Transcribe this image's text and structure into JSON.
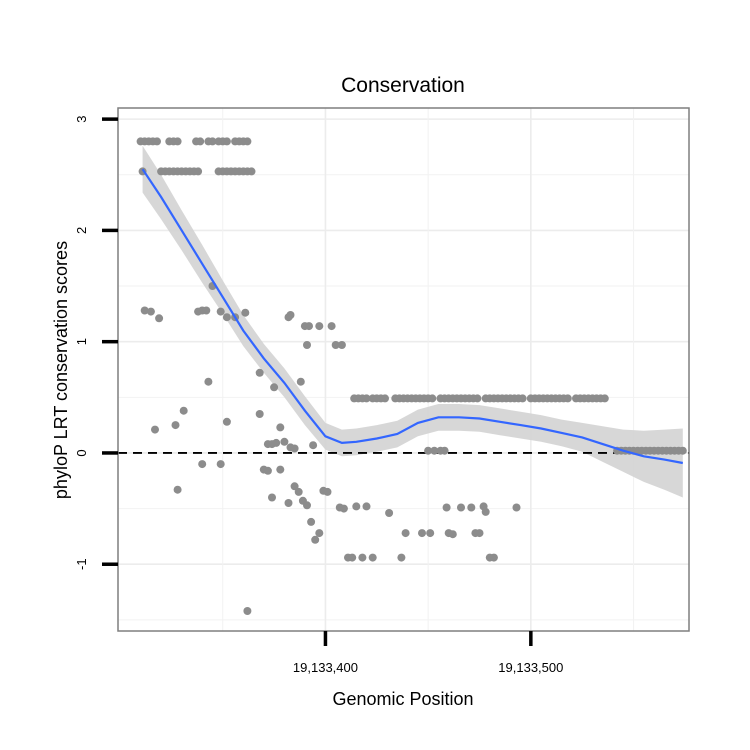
{
  "chart_data": {
    "type": "scatter",
    "title": "Conservation",
    "xlabel": "Genomic Position",
    "ylabel": "phyloP LRT conservation scores",
    "xlim": [
      19133299,
      19133577
    ],
    "ylim": [
      -1.6,
      3.1
    ],
    "x_ticks": [
      {
        "value": 19133400,
        "label": "19,133,400"
      },
      {
        "value": 19133500,
        "label": "19,133,500"
      }
    ],
    "y_ticks": [
      {
        "value": -1,
        "label": "-1"
      },
      {
        "value": 0,
        "label": "0"
      },
      {
        "value": 1,
        "label": "1"
      },
      {
        "value": 2,
        "label": "2"
      },
      {
        "value": 3,
        "label": "3"
      }
    ],
    "grid": true,
    "reference_line": {
      "y": 0,
      "style": "dashed"
    },
    "point_color": "#8c8c8c",
    "smooth_color": "#3366ff",
    "band_color": "#d3d3d3",
    "series": [
      {
        "type": "scatter",
        "points": [
          [
            19133310,
            2.8
          ],
          [
            19133312,
            2.8
          ],
          [
            19133314,
            2.8
          ],
          [
            19133316,
            2.8
          ],
          [
            19133318,
            2.8
          ],
          [
            19133324,
            2.8
          ],
          [
            19133326,
            2.8
          ],
          [
            19133328,
            2.8
          ],
          [
            19133337,
            2.8
          ],
          [
            19133339,
            2.8
          ],
          [
            19133343,
            2.8
          ],
          [
            19133345,
            2.8
          ],
          [
            19133348,
            2.8
          ],
          [
            19133350,
            2.8
          ],
          [
            19133352,
            2.8
          ],
          [
            19133356,
            2.8
          ],
          [
            19133358,
            2.8
          ],
          [
            19133360,
            2.8
          ],
          [
            19133362,
            2.8
          ],
          [
            19133320,
            2.53
          ],
          [
            19133322,
            2.53
          ],
          [
            19133324,
            2.53
          ],
          [
            19133326,
            2.53
          ],
          [
            19133328,
            2.53
          ],
          [
            19133330,
            2.53
          ],
          [
            19133332,
            2.53
          ],
          [
            19133334,
            2.53
          ],
          [
            19133336,
            2.53
          ],
          [
            19133338,
            2.53
          ],
          [
            19133348,
            2.53
          ],
          [
            19133350,
            2.53
          ],
          [
            19133352,
            2.53
          ],
          [
            19133354,
            2.53
          ],
          [
            19133356,
            2.53
          ],
          [
            19133358,
            2.53
          ],
          [
            19133360,
            2.53
          ],
          [
            19133362,
            2.53
          ],
          [
            19133364,
            2.53
          ],
          [
            19133311,
            2.53
          ],
          [
            19133312,
            1.28
          ],
          [
            19133315,
            1.27
          ],
          [
            19133319,
            1.21
          ],
          [
            19133338,
            1.27
          ],
          [
            19133340,
            1.28
          ],
          [
            19133342,
            1.28
          ],
          [
            19133345,
            1.5
          ],
          [
            19133349,
            1.27
          ],
          [
            19133352,
            1.22
          ],
          [
            19133356,
            1.22
          ],
          [
            19133361,
            1.26
          ],
          [
            19133382,
            1.22
          ],
          [
            19133383,
            1.24
          ],
          [
            19133390,
            1.14
          ],
          [
            19133392,
            1.14
          ],
          [
            19133397,
            1.14
          ],
          [
            19133403,
            1.14
          ],
          [
            19133405,
            0.97
          ],
          [
            19133408,
            0.97
          ],
          [
            19133368,
            0.72
          ],
          [
            19133375,
            0.59
          ],
          [
            19133388,
            0.64
          ],
          [
            19133391,
            0.97
          ],
          [
            19133343,
            0.64
          ],
          [
            19133327,
            0.25
          ],
          [
            19133331,
            0.38
          ],
          [
            19133317,
            0.21
          ],
          [
            19133352,
            0.28
          ],
          [
            19133368,
            0.35
          ],
          [
            19133372,
            0.08
          ],
          [
            19133374,
            0.08
          ],
          [
            19133376,
            0.09
          ],
          [
            19133378,
            0.23
          ],
          [
            19133380,
            0.1
          ],
          [
            19133383,
            0.05
          ],
          [
            19133385,
            0.04
          ],
          [
            19133328,
            -0.33
          ],
          [
            19133340,
            -0.1
          ],
          [
            19133349,
            -0.1
          ],
          [
            19133370,
            -0.15
          ],
          [
            19133372,
            -0.16
          ],
          [
            19133374,
            -0.4
          ],
          [
            19133378,
            -0.15
          ],
          [
            19133382,
            -0.45
          ],
          [
            19133385,
            -0.3
          ],
          [
            19133387,
            -0.35
          ],
          [
            19133389,
            -0.43
          ],
          [
            19133391,
            -0.47
          ],
          [
            19133393,
            -0.62
          ],
          [
            19133395,
            -0.78
          ],
          [
            19133397,
            -0.72
          ],
          [
            19133399,
            -0.34
          ],
          [
            19133401,
            -0.35
          ],
          [
            19133407,
            -0.49
          ],
          [
            19133409,
            -0.5
          ],
          [
            19133411,
            -0.94
          ],
          [
            19133413,
            -0.94
          ],
          [
            19133415,
            -0.48
          ],
          [
            19133418,
            -0.94
          ],
          [
            19133420,
            -0.48
          ],
          [
            19133423,
            -0.94
          ],
          [
            19133431,
            -0.54
          ],
          [
            19133437,
            -0.94
          ],
          [
            19133439,
            -0.72
          ],
          [
            19133447,
            -0.72
          ],
          [
            19133451,
            -0.72
          ],
          [
            19133459,
            -0.49
          ],
          [
            19133460,
            -0.72
          ],
          [
            19133462,
            -0.73
          ],
          [
            19133466,
            -0.49
          ],
          [
            19133471,
            -0.49
          ],
          [
            19133473,
            -0.72
          ],
          [
            19133475,
            -0.72
          ],
          [
            19133477,
            -0.48
          ],
          [
            19133478,
            -0.53
          ],
          [
            19133480,
            -0.94
          ],
          [
            19133482,
            -0.94
          ],
          [
            19133493,
            -0.49
          ],
          [
            19133362,
            -1.42
          ],
          [
            19133394,
            0.07
          ],
          [
            19133414,
            0.49
          ],
          [
            19133416,
            0.49
          ],
          [
            19133418,
            0.49
          ],
          [
            19133420,
            0.49
          ],
          [
            19133423,
            0.49
          ],
          [
            19133425,
            0.49
          ],
          [
            19133427,
            0.49
          ],
          [
            19133429,
            0.49
          ],
          [
            19133434,
            0.49
          ],
          [
            19133436,
            0.49
          ],
          [
            19133438,
            0.49
          ],
          [
            19133440,
            0.49
          ],
          [
            19133442,
            0.49
          ],
          [
            19133444,
            0.49
          ],
          [
            19133446,
            0.49
          ],
          [
            19133448,
            0.49
          ],
          [
            19133450,
            0.49
          ],
          [
            19133452,
            0.49
          ],
          [
            19133456,
            0.49
          ],
          [
            19133458,
            0.49
          ],
          [
            19133460,
            0.49
          ],
          [
            19133462,
            0.49
          ],
          [
            19133464,
            0.49
          ],
          [
            19133466,
            0.49
          ],
          [
            19133468,
            0.49
          ],
          [
            19133470,
            0.49
          ],
          [
            19133472,
            0.49
          ],
          [
            19133474,
            0.49
          ],
          [
            19133478,
            0.49
          ],
          [
            19133480,
            0.49
          ],
          [
            19133482,
            0.49
          ],
          [
            19133484,
            0.49
          ],
          [
            19133486,
            0.49
          ],
          [
            19133488,
            0.49
          ],
          [
            19133490,
            0.49
          ],
          [
            19133492,
            0.49
          ],
          [
            19133494,
            0.49
          ],
          [
            19133496,
            0.49
          ],
          [
            19133500,
            0.49
          ],
          [
            19133502,
            0.49
          ],
          [
            19133504,
            0.49
          ],
          [
            19133506,
            0.49
          ],
          [
            19133508,
            0.49
          ],
          [
            19133510,
            0.49
          ],
          [
            19133512,
            0.49
          ],
          [
            19133514,
            0.49
          ],
          [
            19133516,
            0.49
          ],
          [
            19133518,
            0.49
          ],
          [
            19133522,
            0.49
          ],
          [
            19133524,
            0.49
          ],
          [
            19133526,
            0.49
          ],
          [
            19133528,
            0.49
          ],
          [
            19133530,
            0.49
          ],
          [
            19133532,
            0.49
          ],
          [
            19133534,
            0.49
          ],
          [
            19133536,
            0.49
          ],
          [
            19133450,
            0.02
          ],
          [
            19133453,
            0.02
          ],
          [
            19133456,
            0.02
          ],
          [
            19133458,
            0.02
          ],
          [
            19133542,
            0.02
          ],
          [
            19133544,
            0.02
          ],
          [
            19133546,
            0.02
          ],
          [
            19133548,
            0.02
          ],
          [
            19133550,
            0.02
          ],
          [
            19133552,
            0.02
          ],
          [
            19133554,
            0.02
          ],
          [
            19133556,
            0.02
          ],
          [
            19133558,
            0.02
          ],
          [
            19133560,
            0.02
          ],
          [
            19133562,
            0.02
          ],
          [
            19133564,
            0.02
          ],
          [
            19133566,
            0.02
          ],
          [
            19133568,
            0.02
          ],
          [
            19133570,
            0.02
          ],
          [
            19133572,
            0.02
          ],
          [
            19133574,
            0.02
          ]
        ]
      },
      {
        "type": "smooth",
        "points": [
          [
            19133311,
            2.55
          ],
          [
            19133320,
            2.3
          ],
          [
            19133330,
            2.0
          ],
          [
            19133340,
            1.7
          ],
          [
            19133350,
            1.4
          ],
          [
            19133360,
            1.1
          ],
          [
            19133370,
            0.85
          ],
          [
            19133380,
            0.63
          ],
          [
            19133390,
            0.38
          ],
          [
            19133400,
            0.15
          ],
          [
            19133408,
            0.09
          ],
          [
            19133415,
            0.1
          ],
          [
            19133425,
            0.13
          ],
          [
            19133435,
            0.17
          ],
          [
            19133445,
            0.27
          ],
          [
            19133455,
            0.32
          ],
          [
            19133465,
            0.32
          ],
          [
            19133475,
            0.31
          ],
          [
            19133485,
            0.28
          ],
          [
            19133495,
            0.25
          ],
          [
            19133505,
            0.22
          ],
          [
            19133515,
            0.18
          ],
          [
            19133525,
            0.14
          ],
          [
            19133535,
            0.08
          ],
          [
            19133545,
            0.02
          ],
          [
            19133555,
            -0.03
          ],
          [
            19133565,
            -0.06
          ],
          [
            19133574,
            -0.09
          ]
        ]
      },
      {
        "type": "band",
        "upper": [
          [
            19133311,
            2.76
          ],
          [
            19133320,
            2.5
          ],
          [
            19133330,
            2.18
          ],
          [
            19133340,
            1.87
          ],
          [
            19133350,
            1.55
          ],
          [
            19133360,
            1.24
          ],
          [
            19133370,
            0.98
          ],
          [
            19133380,
            0.76
          ],
          [
            19133390,
            0.51
          ],
          [
            19133400,
            0.27
          ],
          [
            19133408,
            0.21
          ],
          [
            19133415,
            0.22
          ],
          [
            19133425,
            0.25
          ],
          [
            19133435,
            0.29
          ],
          [
            19133445,
            0.39
          ],
          [
            19133455,
            0.44
          ],
          [
            19133465,
            0.44
          ],
          [
            19133475,
            0.43
          ],
          [
            19133485,
            0.4
          ],
          [
            19133495,
            0.37
          ],
          [
            19133505,
            0.34
          ],
          [
            19133515,
            0.3
          ],
          [
            19133525,
            0.27
          ],
          [
            19133535,
            0.24
          ],
          [
            19133545,
            0.21
          ],
          [
            19133555,
            0.2
          ],
          [
            19133565,
            0.21
          ],
          [
            19133574,
            0.22
          ]
        ],
        "lower": [
          [
            19133311,
            2.34
          ],
          [
            19133320,
            2.1
          ],
          [
            19133330,
            1.82
          ],
          [
            19133340,
            1.53
          ],
          [
            19133350,
            1.25
          ],
          [
            19133360,
            0.96
          ],
          [
            19133370,
            0.72
          ],
          [
            19133380,
            0.5
          ],
          [
            19133390,
            0.25
          ],
          [
            19133400,
            0.03
          ],
          [
            19133408,
            -0.03
          ],
          [
            19133415,
            -0.02
          ],
          [
            19133425,
            0.01
          ],
          [
            19133435,
            0.05
          ],
          [
            19133445,
            0.15
          ],
          [
            19133455,
            0.2
          ],
          [
            19133465,
            0.2
          ],
          [
            19133475,
            0.19
          ],
          [
            19133485,
            0.16
          ],
          [
            19133495,
            0.13
          ],
          [
            19133505,
            0.1
          ],
          [
            19133515,
            0.06
          ],
          [
            19133525,
            0.01
          ],
          [
            19133535,
            -0.08
          ],
          [
            19133545,
            -0.17
          ],
          [
            19133555,
            -0.26
          ],
          [
            19133565,
            -0.33
          ],
          [
            19133574,
            -0.4
          ]
        ]
      }
    ]
  }
}
